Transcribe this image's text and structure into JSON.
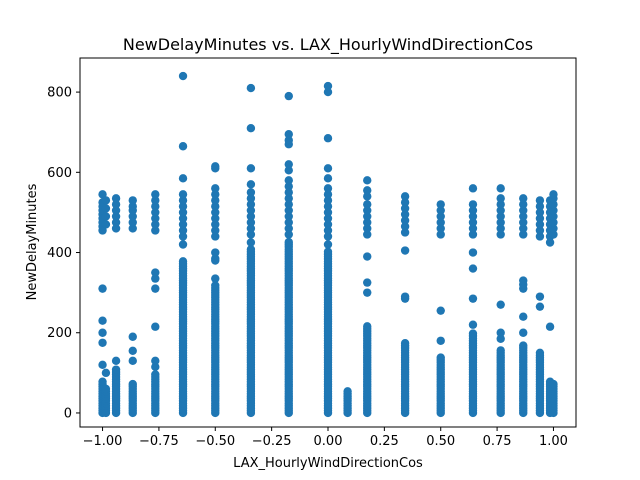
{
  "chart_data": {
    "type": "scatter",
    "title": "NewDelayMinutes vs. LAX_HourlyWindDirectionCos",
    "xlabel": "LAX_HourlyWindDirectionCos",
    "ylabel": "NewDelayMinutes",
    "xlim": [
      -1.1,
      1.1
    ],
    "ylim": [
      -35,
      885
    ],
    "x_ticks": [
      -1.0,
      -0.75,
      -0.5,
      -0.25,
      0.0,
      0.25,
      0.5,
      0.75,
      1.0
    ],
    "x_tick_labels": [
      "−1.00",
      "−0.75",
      "−0.50",
      "−0.25",
      "0.00",
      "0.25",
      "0.50",
      "0.75",
      "1.00"
    ],
    "y_ticks": [
      0,
      200,
      400,
      600,
      800
    ],
    "y_tick_labels": [
      "0",
      "200",
      "400",
      "600",
      "800"
    ],
    "grid": false,
    "marker_color": "#1f77b4",
    "columns": [
      {
        "x": -1.0,
        "low_max": 80,
        "mid": [
          120,
          175,
          200,
          230,
          310
        ],
        "high": [
          455,
          465,
          475,
          485,
          495,
          505,
          515,
          525,
          545
        ]
      },
      {
        "x": -0.985,
        "low_max": 60,
        "mid": [
          100
        ],
        "high": [
          470,
          490,
          510,
          530
        ]
      },
      {
        "x": -0.94,
        "low_max": 110,
        "mid": [
          130
        ],
        "high": [
          460,
          475,
          490,
          505,
          520,
          535
        ]
      },
      {
        "x": -0.866,
        "low_max": 75,
        "mid": [
          130,
          155,
          190
        ],
        "high": [
          460,
          475,
          490,
          505,
          515,
          530
        ]
      },
      {
        "x": -0.766,
        "low_max": 100,
        "mid": [
          115,
          130,
          215,
          310,
          335,
          350
        ],
        "high": [
          455,
          470,
          485,
          500,
          515,
          530,
          545
        ]
      },
      {
        "x": -0.643,
        "low_max": 380,
        "mid": [
          420,
          440
        ],
        "high": [
          455,
          470,
          485,
          500,
          515,
          530,
          545,
          585,
          665,
          840
        ]
      },
      {
        "x": -0.5,
        "low_max": 320,
        "mid": [
          335,
          380,
          385,
          400,
          440
        ],
        "high": [
          455,
          470,
          485,
          500,
          515,
          530,
          545,
          560,
          610,
          615
        ]
      },
      {
        "x": -0.342,
        "low_max": 410,
        "mid": [
          425
        ],
        "high": [
          445,
          460,
          475,
          490,
          505,
          520,
          535,
          550,
          570,
          610,
          710,
          810
        ]
      },
      {
        "x": -0.174,
        "low_max": 430,
        "mid": [],
        "high": [
          445,
          460,
          475,
          490,
          505,
          520,
          535,
          550,
          565,
          580,
          605,
          620,
          670,
          680,
          695,
          790
        ]
      },
      {
        "x": 0.0,
        "low_max": 405,
        "mid": [
          420,
          440
        ],
        "high": [
          455,
          470,
          485,
          500,
          515,
          530,
          545,
          560,
          585,
          610,
          685,
          800,
          815
        ]
      },
      {
        "x": 0.087,
        "low_max": 55,
        "mid": [],
        "high": []
      },
      {
        "x": 0.174,
        "low_max": 220,
        "mid": [
          300,
          325,
          390
        ],
        "high": [
          445,
          460,
          475,
          490,
          505,
          520,
          540,
          555,
          580
        ]
      },
      {
        "x": 0.342,
        "low_max": 175,
        "mid": [
          285,
          290,
          405
        ],
        "high": [
          450,
          465,
          480,
          495,
          510,
          525,
          540
        ]
      },
      {
        "x": 0.5,
        "low_max": 140,
        "mid": [
          180,
          255
        ],
        "high": [
          445,
          460,
          475,
          490,
          505,
          520
        ]
      },
      {
        "x": 0.643,
        "low_max": 200,
        "mid": [
          220,
          285,
          360,
          400
        ],
        "high": [
          445,
          460,
          475,
          490,
          505,
          520,
          560
        ]
      },
      {
        "x": 0.766,
        "low_max": 160,
        "mid": [
          185,
          200,
          270
        ],
        "high": [
          445,
          460,
          475,
          490,
          505,
          520,
          535,
          560
        ]
      },
      {
        "x": 0.866,
        "low_max": 170,
        "mid": [
          200,
          240,
          310,
          320,
          330
        ],
        "high": [
          445,
          460,
          475,
          490,
          505,
          520,
          535
        ]
      },
      {
        "x": 0.94,
        "low_max": 155,
        "mid": [
          265,
          290
        ],
        "high": [
          440,
          455,
          470,
          485,
          500,
          515,
          530
        ]
      },
      {
        "x": 0.985,
        "low_max": 80,
        "mid": [
          215
        ],
        "high": [
          425,
          440,
          455,
          470,
          485,
          500,
          515,
          530
        ]
      },
      {
        "x": 1.0,
        "low_max": 75,
        "mid": [],
        "high": [
          445,
          460,
          475,
          490,
          505,
          520,
          535,
          545
        ]
      }
    ]
  }
}
